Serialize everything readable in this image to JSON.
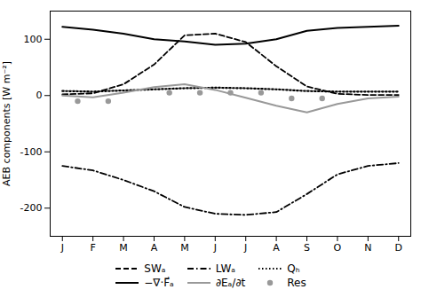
{
  "chart_data": {
    "type": "line",
    "x": [
      1,
      2,
      3,
      4,
      5,
      6,
      7,
      8,
      9,
      10,
      11,
      12
    ],
    "xlim": [
      0.6,
      12.4
    ],
    "xticks": [
      {
        "value": 1,
        "label": "J"
      },
      {
        "value": 2,
        "label": "F"
      },
      {
        "value": 3,
        "label": "M"
      },
      {
        "value": 4,
        "label": "A"
      },
      {
        "value": 5,
        "label": "M"
      },
      {
        "value": 6,
        "label": "J"
      },
      {
        "value": 7,
        "label": "J"
      },
      {
        "value": 8,
        "label": "A"
      },
      {
        "value": 9,
        "label": "S"
      },
      {
        "value": 10,
        "label": "O"
      },
      {
        "value": 11,
        "label": "N"
      },
      {
        "value": 12,
        "label": "D"
      }
    ],
    "ylabel": "AEB components [W m⁻²]",
    "ylim": [
      -250,
      150
    ],
    "yticks": [
      -200,
      -100,
      0,
      100
    ],
    "grid": false,
    "legend": "bottom",
    "series": [
      {
        "name": "SWₐ",
        "type": "line",
        "color": "black",
        "line_style": "dashed",
        "values": [
          2,
          4,
          20,
          55,
          107,
          110,
          95,
          52,
          16,
          3,
          1,
          1
        ]
      },
      {
        "name": "LWₐ",
        "type": "line",
        "color": "black",
        "line_style": "dashdot",
        "values": [
          -125,
          -133,
          -150,
          -170,
          -198,
          -210,
          -212,
          -207,
          -175,
          -140,
          -125,
          -120
        ]
      },
      {
        "name": "Qₕ",
        "type": "line",
        "color": "black",
        "line_style": "dotted",
        "values": [
          8,
          7,
          9,
          11,
          13,
          14,
          13,
          11,
          8,
          7,
          7,
          7
        ]
      },
      {
        "name": "−∇·F⃗ₐ",
        "type": "line",
        "color": "black",
        "line_style": "solid",
        "values": [
          122,
          117,
          110,
          100,
          96,
          90,
          92,
          100,
          115,
          120,
          122,
          124
        ]
      },
      {
        "name": "∂Eₐ/∂t",
        "type": "line",
        "color": "#999999",
        "line_style": "solid",
        "values": [
          0,
          -3,
          5,
          15,
          20,
          10,
          -4,
          -18,
          -30,
          -15,
          -5,
          -2
        ]
      },
      {
        "name": "Res",
        "type": "scatter",
        "color": "#999999",
        "marker": "circle",
        "x": [
          1.5,
          2.5,
          4.5,
          5.5,
          6.5,
          7.5,
          8.5,
          9.5
        ],
        "values": [
          -10,
          -10,
          5,
          5,
          5,
          5,
          -5,
          -5
        ]
      }
    ]
  }
}
